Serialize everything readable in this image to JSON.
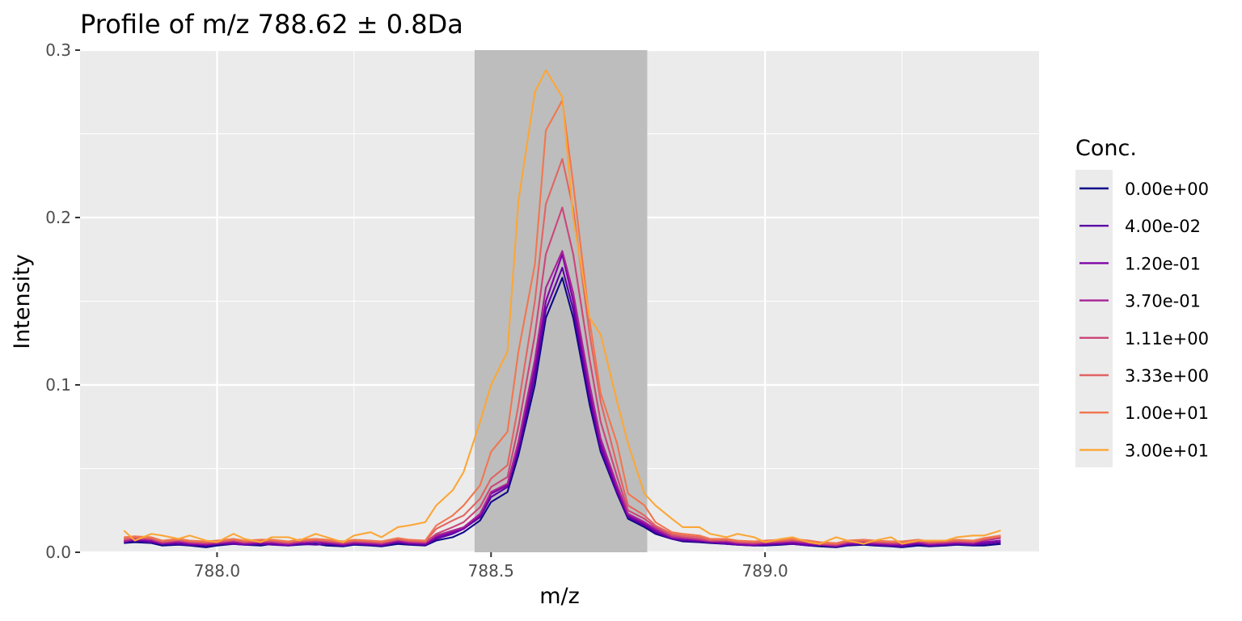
{
  "chart_data": {
    "type": "line",
    "title": "Profile of m/z 788.62 ± 0.8Da",
    "xlabel": "m/z",
    "ylabel": "Intensity",
    "xlim": [
      787.75,
      789.5
    ],
    "ylim": [
      0,
      0.3
    ],
    "x_ticks": [
      788.0,
      788.5,
      789.0
    ],
    "x_tick_labels": [
      "788.0",
      "788.5",
      "789.0"
    ],
    "y_ticks": [
      0.0,
      0.1,
      0.2,
      0.3
    ],
    "y_tick_labels": [
      "0.0",
      "0.1",
      "0.2",
      "0.3"
    ],
    "grid": true,
    "highlight_band": {
      "x0": 788.47,
      "x1": 788.785,
      "color": "#bdbdbd"
    },
    "legend": {
      "title": "Conc.",
      "position": "right"
    },
    "x": [
      787.83,
      787.85,
      787.88,
      787.9,
      787.93,
      787.95,
      787.98,
      788.0,
      788.03,
      788.05,
      788.08,
      788.1,
      788.13,
      788.15,
      788.18,
      788.2,
      788.23,
      788.25,
      788.28,
      788.3,
      788.33,
      788.35,
      788.38,
      788.4,
      788.43,
      788.45,
      788.48,
      788.5,
      788.53,
      788.55,
      788.58,
      788.6,
      788.63,
      788.65,
      788.68,
      788.7,
      788.73,
      788.75,
      788.78,
      788.8,
      788.83,
      788.85,
      788.88,
      788.9,
      788.93,
      788.95,
      788.98,
      789.0,
      789.03,
      789.05,
      789.08,
      789.1,
      789.13,
      789.15,
      789.18,
      789.2,
      789.23,
      789.25,
      789.28,
      789.3,
      789.33,
      789.35,
      789.38,
      789.4,
      789.43
    ],
    "series": [
      {
        "name": "0.00e+00",
        "color": "#0d0887",
        "values": [
          0.0055,
          0.006,
          0.0055,
          0.004,
          0.0045,
          0.004,
          0.003,
          0.004,
          0.005,
          0.0045,
          0.004,
          0.005,
          0.004,
          0.0045,
          0.005,
          0.004,
          0.0035,
          0.0045,
          0.004,
          0.0035,
          0.005,
          0.0045,
          0.004,
          0.007,
          0.009,
          0.012,
          0.019,
          0.03,
          0.036,
          0.058,
          0.1,
          0.14,
          0.164,
          0.14,
          0.088,
          0.06,
          0.035,
          0.02,
          0.015,
          0.011,
          0.008,
          0.0065,
          0.006,
          0.0055,
          0.005,
          0.0045,
          0.004,
          0.004,
          0.0045,
          0.005,
          0.004,
          0.0035,
          0.003,
          0.004,
          0.0045,
          0.004,
          0.0035,
          0.003,
          0.004,
          0.0035,
          0.004,
          0.0045,
          0.004,
          0.004,
          0.005
        ]
      },
      {
        "name": "4.00e-02",
        "color": "#5c01a6",
        "values": [
          0.006,
          0.007,
          0.006,
          0.005,
          0.005,
          0.0045,
          0.004,
          0.005,
          0.005,
          0.0045,
          0.005,
          0.0045,
          0.004,
          0.005,
          0.0045,
          0.005,
          0.004,
          0.005,
          0.0045,
          0.004,
          0.006,
          0.005,
          0.0045,
          0.008,
          0.011,
          0.014,
          0.021,
          0.033,
          0.039,
          0.061,
          0.105,
          0.145,
          0.17,
          0.145,
          0.092,
          0.062,
          0.036,
          0.021,
          0.016,
          0.012,
          0.008,
          0.007,
          0.0065,
          0.006,
          0.005,
          0.0045,
          0.004,
          0.0045,
          0.005,
          0.005,
          0.004,
          0.0045,
          0.0035,
          0.0045,
          0.005,
          0.0045,
          0.004,
          0.0035,
          0.005,
          0.004,
          0.0045,
          0.005,
          0.0045,
          0.005,
          0.006
        ]
      },
      {
        "name": "1.20e-01",
        "color": "#7e03a8",
        "values": [
          0.007,
          0.0075,
          0.007,
          0.005,
          0.006,
          0.005,
          0.0045,
          0.005,
          0.006,
          0.005,
          0.0055,
          0.0055,
          0.0045,
          0.0055,
          0.006,
          0.0055,
          0.0045,
          0.0055,
          0.005,
          0.0045,
          0.0065,
          0.0055,
          0.005,
          0.009,
          0.012,
          0.014,
          0.022,
          0.035,
          0.04,
          0.064,
          0.11,
          0.15,
          0.178,
          0.15,
          0.095,
          0.065,
          0.038,
          0.022,
          0.017,
          0.013,
          0.009,
          0.008,
          0.007,
          0.0065,
          0.006,
          0.005,
          0.0045,
          0.005,
          0.0055,
          0.006,
          0.005,
          0.0045,
          0.0035,
          0.005,
          0.0055,
          0.005,
          0.0045,
          0.0045,
          0.0055,
          0.0045,
          0.005,
          0.0055,
          0.005,
          0.006,
          0.007
        ]
      },
      {
        "name": "3.70e-01",
        "color": "#a82296",
        "values": [
          0.0065,
          0.008,
          0.0075,
          0.0055,
          0.0065,
          0.0055,
          0.005,
          0.0055,
          0.0065,
          0.0055,
          0.006,
          0.006,
          0.005,
          0.006,
          0.0065,
          0.006,
          0.005,
          0.006,
          0.0055,
          0.005,
          0.007,
          0.006,
          0.0055,
          0.01,
          0.013,
          0.015,
          0.023,
          0.036,
          0.041,
          0.066,
          0.115,
          0.158,
          0.18,
          0.155,
          0.1,
          0.068,
          0.04,
          0.023,
          0.018,
          0.014,
          0.009,
          0.0085,
          0.0075,
          0.0065,
          0.0065,
          0.0055,
          0.005,
          0.0055,
          0.006,
          0.0065,
          0.0055,
          0.0045,
          0.004,
          0.0055,
          0.006,
          0.0055,
          0.005,
          0.005,
          0.006,
          0.005,
          0.0055,
          0.006,
          0.0055,
          0.007,
          0.0085
        ]
      },
      {
        "name": "1.11e+00",
        "color": "#cb4679",
        "values": [
          0.0075,
          0.0085,
          0.008,
          0.006,
          0.007,
          0.006,
          0.0055,
          0.006,
          0.007,
          0.006,
          0.0065,
          0.0065,
          0.0055,
          0.0065,
          0.007,
          0.0065,
          0.0055,
          0.0065,
          0.006,
          0.0055,
          0.0075,
          0.0065,
          0.006,
          0.011,
          0.015,
          0.018,
          0.027,
          0.039,
          0.045,
          0.075,
          0.13,
          0.178,
          0.206,
          0.178,
          0.115,
          0.078,
          0.045,
          0.025,
          0.02,
          0.015,
          0.01,
          0.009,
          0.008,
          0.007,
          0.007,
          0.006,
          0.0055,
          0.006,
          0.0065,
          0.007,
          0.006,
          0.005,
          0.0045,
          0.006,
          0.0065,
          0.006,
          0.0055,
          0.0055,
          0.0065,
          0.0055,
          0.006,
          0.0065,
          0.006,
          0.0075,
          0.009
        ]
      },
      {
        "name": "3.33e+00",
        "color": "#e16462",
        "values": [
          0.008,
          0.009,
          0.0085,
          0.0065,
          0.0075,
          0.0065,
          0.006,
          0.0065,
          0.0075,
          0.0065,
          0.007,
          0.007,
          0.006,
          0.007,
          0.0075,
          0.007,
          0.006,
          0.007,
          0.0065,
          0.006,
          0.008,
          0.007,
          0.0065,
          0.014,
          0.019,
          0.022,
          0.032,
          0.044,
          0.052,
          0.088,
          0.15,
          0.208,
          0.235,
          0.205,
          0.13,
          0.09,
          0.052,
          0.028,
          0.022,
          0.016,
          0.011,
          0.01,
          0.009,
          0.0075,
          0.0075,
          0.0065,
          0.006,
          0.0065,
          0.007,
          0.0075,
          0.0065,
          0.0055,
          0.005,
          0.0065,
          0.007,
          0.0065,
          0.006,
          0.006,
          0.007,
          0.006,
          0.0065,
          0.007,
          0.0065,
          0.008,
          0.0095
        ]
      },
      {
        "name": "1.00e+01",
        "color": "#f1764f",
        "values": [
          0.009,
          0.0095,
          0.009,
          0.007,
          0.008,
          0.007,
          0.0065,
          0.007,
          0.008,
          0.007,
          0.0075,
          0.0075,
          0.0065,
          0.0075,
          0.008,
          0.0075,
          0.0065,
          0.0075,
          0.007,
          0.0065,
          0.0085,
          0.0075,
          0.007,
          0.016,
          0.022,
          0.028,
          0.04,
          0.06,
          0.072,
          0.12,
          0.172,
          0.252,
          0.27,
          0.22,
          0.138,
          0.095,
          0.065,
          0.035,
          0.028,
          0.018,
          0.012,
          0.011,
          0.01,
          0.008,
          0.008,
          0.007,
          0.0065,
          0.007,
          0.0075,
          0.008,
          0.007,
          0.006,
          0.0055,
          0.007,
          0.0075,
          0.007,
          0.0065,
          0.0065,
          0.0075,
          0.0065,
          0.007,
          0.0075,
          0.007,
          0.0085,
          0.01
        ]
      },
      {
        "name": "3.00e+01",
        "color": "#fca636",
        "values": [
          0.013,
          0.007,
          0.011,
          0.01,
          0.008,
          0.01,
          0.007,
          0.006,
          0.011,
          0.008,
          0.006,
          0.009,
          0.009,
          0.007,
          0.011,
          0.009,
          0.006,
          0.01,
          0.012,
          0.009,
          0.015,
          0.016,
          0.018,
          0.028,
          0.037,
          0.048,
          0.078,
          0.1,
          0.12,
          0.21,
          0.275,
          0.288,
          0.272,
          0.2,
          0.14,
          0.13,
          0.09,
          0.065,
          0.035,
          0.028,
          0.02,
          0.015,
          0.015,
          0.011,
          0.009,
          0.011,
          0.009,
          0.006,
          0.008,
          0.009,
          0.006,
          0.005,
          0.009,
          0.007,
          0.005,
          0.007,
          0.009,
          0.005,
          0.007,
          0.007,
          0.007,
          0.009,
          0.01,
          0.01,
          0.013
        ]
      }
    ]
  }
}
